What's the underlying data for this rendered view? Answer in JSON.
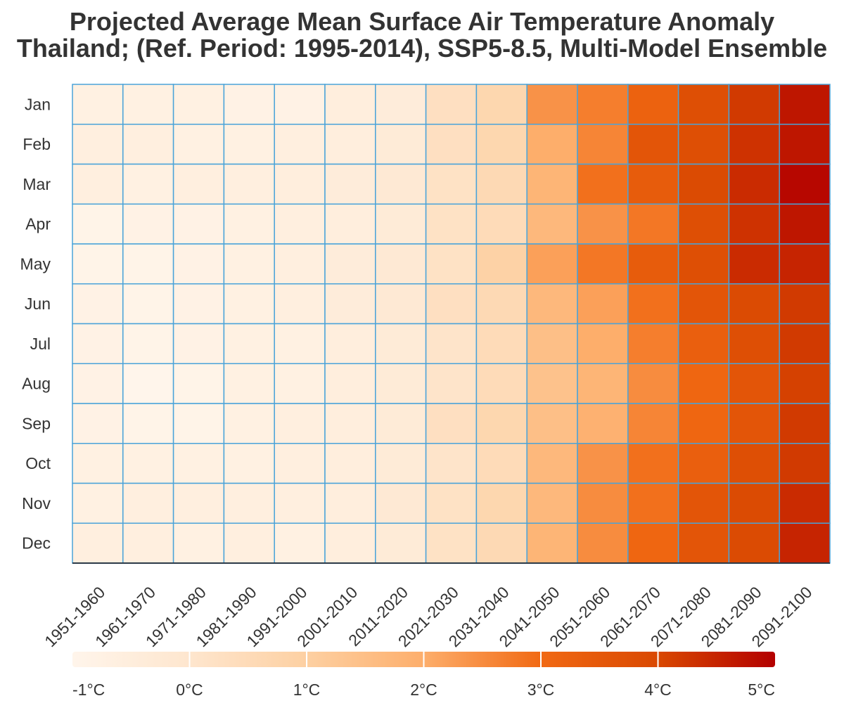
{
  "chart_data": {
    "type": "heatmap",
    "title": "Projected Average Mean Surface Air Temperature Anomaly",
    "subtitle": "Thailand; (Ref. Period: 1995-2014), SSP5-8.5, Multi-Model Ensemble",
    "x_categories": [
      "1951-1960",
      "1961-1970",
      "1971-1980",
      "1981-1990",
      "1991-2000",
      "2001-2010",
      "2011-2020",
      "2021-2030",
      "2031-2040",
      "2041-2050",
      "2051-2060",
      "2061-2070",
      "2071-2080",
      "2081-2090",
      "2091-2100"
    ],
    "y_categories": [
      "Jan",
      "Feb",
      "Mar",
      "Apr",
      "May",
      "Jun",
      "Jul",
      "Aug",
      "Sep",
      "Oct",
      "Nov",
      "Dec"
    ],
    "values": [
      [
        -0.7,
        -0.7,
        -0.7,
        -0.8,
        -0.8,
        -0.5,
        -0.4,
        0.3,
        0.7,
        2.4,
        2.7,
        3.2,
        3.8,
        4.2,
        4.7
      ],
      [
        -0.6,
        -0.6,
        -0.7,
        -0.7,
        -0.6,
        -0.5,
        -0.3,
        0.3,
        0.7,
        2.0,
        2.6,
        3.6,
        3.8,
        4.3,
        4.7
      ],
      [
        -0.6,
        -0.7,
        -0.6,
        -0.6,
        -0.5,
        -0.4,
        -0.2,
        0.2,
        0.6,
        1.8,
        2.9,
        3.4,
        3.9,
        4.4,
        4.9
      ],
      [
        -0.9,
        -0.8,
        -0.8,
        -0.7,
        -0.6,
        -0.5,
        -0.3,
        0.2,
        0.5,
        1.7,
        2.4,
        2.8,
        3.8,
        4.3,
        4.7
      ],
      [
        -0.9,
        -0.9,
        -0.8,
        -0.7,
        -0.6,
        -0.4,
        -0.2,
        0.2,
        0.9,
        2.2,
        2.8,
        3.4,
        3.8,
        4.4,
        4.5
      ],
      [
        -0.8,
        -0.9,
        -0.8,
        -0.7,
        -0.6,
        -0.4,
        -0.2,
        0.3,
        0.6,
        1.7,
        2.2,
        2.9,
        3.6,
        3.9,
        4.2
      ],
      [
        -0.8,
        -0.9,
        -0.8,
        -0.7,
        -0.7,
        -0.5,
        -0.3,
        0.1,
        0.5,
        1.5,
        2.0,
        2.7,
        3.3,
        3.8,
        4.2
      ],
      [
        -0.8,
        -1.0,
        -0.9,
        -0.7,
        -0.7,
        -0.5,
        -0.3,
        0.1,
        0.5,
        1.4,
        1.8,
        2.5,
        3.1,
        3.6,
        4.1
      ],
      [
        -0.8,
        -0.9,
        -0.9,
        -0.7,
        -0.6,
        -0.5,
        -0.3,
        0.3,
        0.7,
        1.5,
        1.9,
        2.6,
        3.1,
        3.6,
        4.2
      ],
      [
        -0.7,
        -0.7,
        -0.7,
        -0.7,
        -0.6,
        -0.5,
        -0.3,
        0.1,
        0.5,
        1.7,
        2.4,
        2.9,
        3.3,
        3.8,
        4.2
      ],
      [
        -0.7,
        -0.6,
        -0.6,
        -0.6,
        -0.6,
        -0.5,
        -0.2,
        0.2,
        0.7,
        1.7,
        2.5,
        2.9,
        3.6,
        3.9,
        4.4
      ],
      [
        -0.6,
        -0.6,
        -0.7,
        -0.6,
        -0.7,
        -0.5,
        -0.3,
        0.2,
        0.6,
        1.8,
        2.5,
        3.1,
        3.6,
        3.9,
        4.5
      ]
    ],
    "colorbar": {
      "ticks": [
        "-1°C",
        "0°C",
        "1°C",
        "2°C",
        "3°C",
        "4°C",
        "5°C"
      ],
      "min": -1,
      "max": 5,
      "colors": [
        "#fff5eb",
        "#fee6ce",
        "#fdd0a2",
        "#fdae6b",
        "#f16913",
        "#d94801",
        "#b30000"
      ]
    },
    "grid": true,
    "grid_color": "#4aa3d9"
  }
}
